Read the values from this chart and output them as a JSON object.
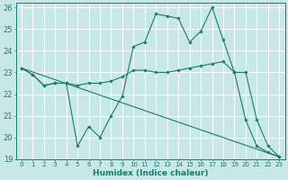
{
  "xlabel": "Humidex (Indice chaleur)",
  "xlim": [
    -0.5,
    23.5
  ],
  "ylim": [
    19,
    26.2
  ],
  "yticks": [
    19,
    20,
    21,
    22,
    23,
    24,
    25,
    26
  ],
  "xticks": [
    0,
    1,
    2,
    3,
    4,
    5,
    6,
    7,
    8,
    9,
    10,
    11,
    12,
    13,
    14,
    15,
    16,
    17,
    18,
    19,
    20,
    21,
    22,
    23
  ],
  "xtick_labels": [
    "0",
    "1",
    "2",
    "3",
    "4",
    "5",
    "6",
    "7",
    "8",
    "9",
    "10",
    "11",
    "12",
    "13",
    "14",
    "15",
    "16",
    "17",
    "18",
    "19",
    "20",
    "21",
    "22",
    "23"
  ],
  "background_color": "#c8e8e8",
  "grid_color": "#ffffff",
  "line_color": "#1a7a6e",
  "line1": {
    "x": [
      0,
      1,
      2,
      3,
      4,
      5,
      6,
      7,
      8,
      9,
      10,
      11,
      12,
      13,
      14,
      15,
      16,
      17,
      18,
      19,
      20,
      21,
      22,
      23
    ],
    "y": [
      23.2,
      22.9,
      22.4,
      22.5,
      22.5,
      19.6,
      20.5,
      20.0,
      21.0,
      21.9,
      24.2,
      24.4,
      25.7,
      25.6,
      25.5,
      24.4,
      24.9,
      26.0,
      24.5,
      23.0,
      20.8,
      19.6,
      19.3,
      19.1
    ]
  },
  "line2": {
    "x": [
      0,
      1,
      2,
      3,
      4,
      5,
      6,
      7,
      8,
      9,
      10,
      11,
      12,
      13,
      14,
      15,
      16,
      17,
      18,
      19,
      20,
      21,
      22,
      23
    ],
    "y": [
      23.2,
      22.9,
      22.4,
      22.5,
      22.5,
      22.4,
      22.5,
      22.5,
      22.6,
      22.8,
      23.1,
      23.1,
      23.0,
      23.0,
      23.1,
      23.2,
      23.3,
      23.4,
      23.5,
      23.0,
      23.0,
      20.8,
      19.6,
      19.1
    ]
  },
  "line3": {
    "x": [
      0,
      23
    ],
    "y": [
      23.2,
      19.1
    ]
  }
}
